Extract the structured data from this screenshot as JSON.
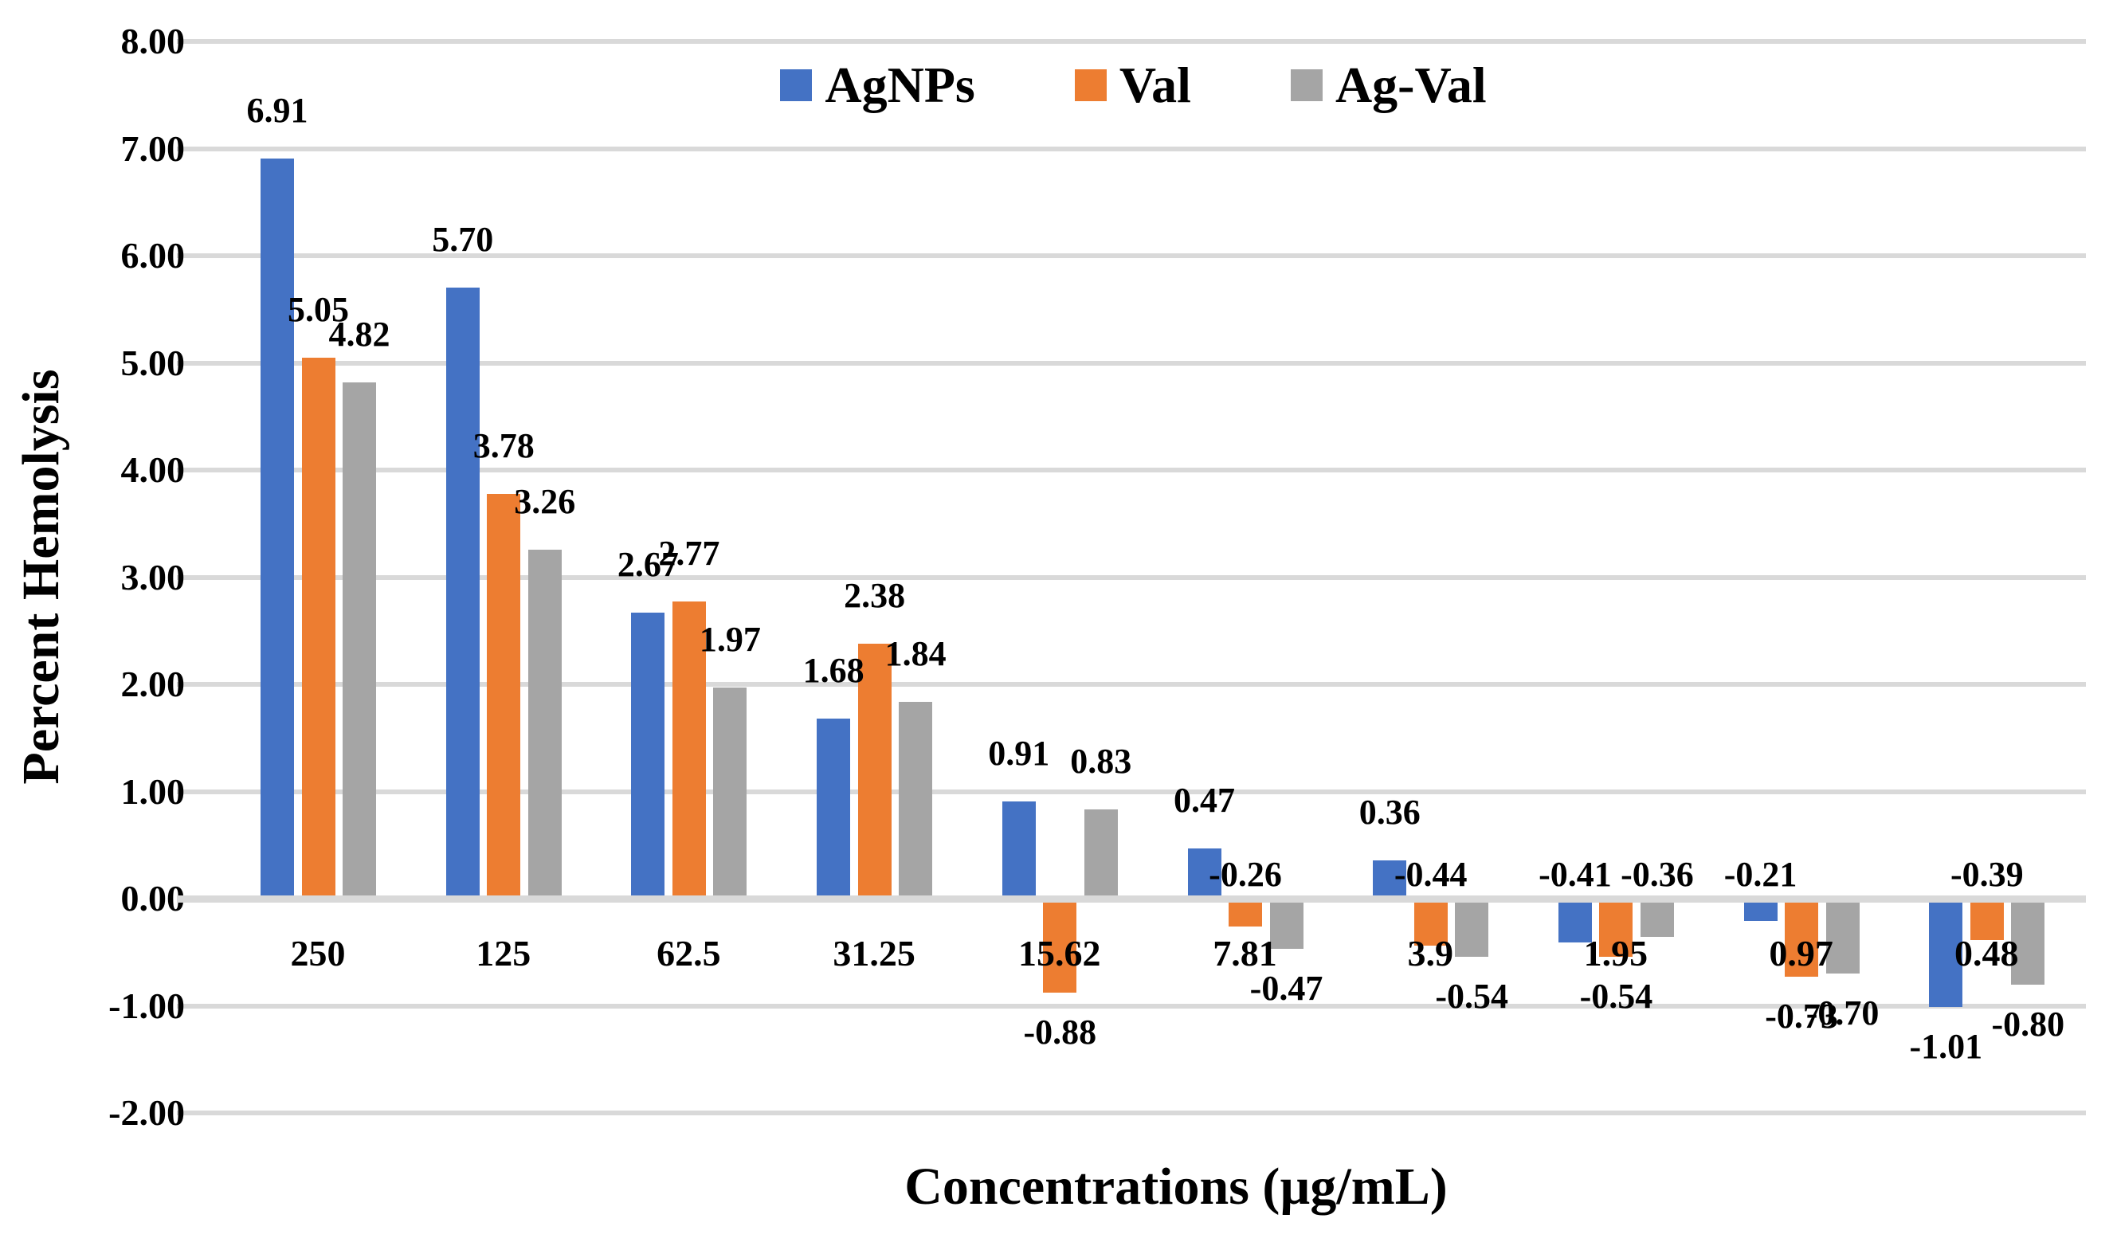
{
  "chart_data": {
    "type": "bar",
    "title": "",
    "xlabel": "Concentrations (µg/mL)",
    "ylabel": "Percent Hemolysis",
    "categories": [
      "250",
      "125",
      "62.5",
      "31.25",
      "15.62",
      "7.81",
      "3.9",
      "1.95",
      "0.97",
      "0.48"
    ],
    "series": [
      {
        "name": "AgNPs",
        "color": "#4472c4",
        "values": [
          6.91,
          5.7,
          2.67,
          1.68,
          0.91,
          0.47,
          0.36,
          -0.41,
          -0.21,
          -1.01
        ]
      },
      {
        "name": "Val",
        "color": "#ed7d31",
        "values": [
          5.05,
          3.78,
          2.77,
          2.38,
          -0.88,
          -0.26,
          -0.44,
          -0.54,
          -0.73,
          -0.39
        ]
      },
      {
        "name": "Ag-Val",
        "color": "#a5a5a5",
        "values": [
          4.82,
          3.26,
          1.97,
          1.84,
          0.83,
          -0.47,
          -0.54,
          -0.36,
          -0.7,
          -0.8
        ]
      }
    ],
    "ylim": [
      -2,
      8
    ],
    "ytick_step": 1,
    "y_tick_labels": [
      "8.00",
      "7.00",
      "6.00",
      "5.00",
      "4.00",
      "3.00",
      "2.00",
      "1.00",
      "0.00",
      "-1.00",
      "-2.00"
    ],
    "value_label_decimals": 2,
    "grid": true,
    "legend_position": "top-center",
    "gridline_color": "#d9d9d9",
    "text_color": "#000000",
    "background_color": "#ffffff",
    "label_above_axis": [
      [
        1,
        5
      ],
      [
        1,
        6
      ],
      [
        0,
        7
      ],
      [
        2,
        7
      ],
      [
        0,
        8
      ],
      [
        1,
        9
      ]
    ]
  }
}
